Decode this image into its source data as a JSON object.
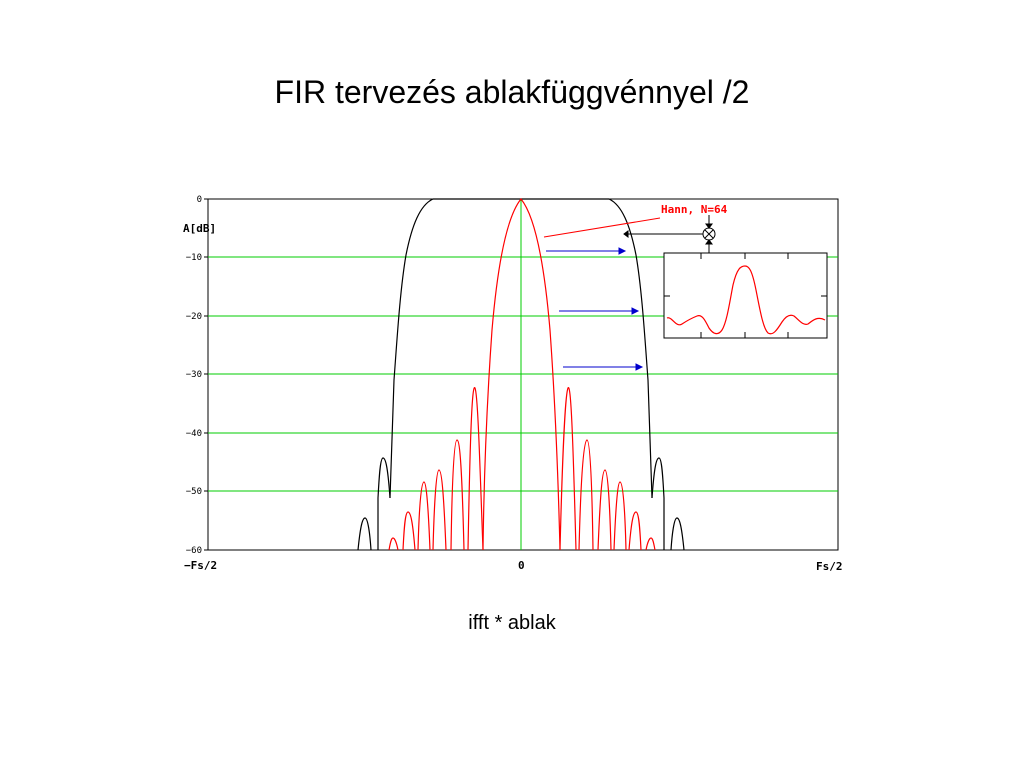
{
  "slide": {
    "title": "FIR tervezés ablakfüggvénnyel /2",
    "caption": "ifft * ablak"
  },
  "figure": {
    "y_axis_label": "A[dB]",
    "y_ticks": [
      "0",
      "−10",
      "−20",
      "−30",
      "−40",
      "−50",
      "−60"
    ],
    "x_ticks": [
      "−Fs/2",
      "0",
      "Fs/2"
    ],
    "annotation_label": "Hann, N=64",
    "colors": {
      "frame": "#000000",
      "gridlines": "#00cc00",
      "center_line": "#00cc00",
      "ideal_response": "#000000",
      "windowed_response": "#ff0000",
      "arrows": "#0000cc",
      "inset_curve": "#ff0000"
    },
    "icons": [
      "multiply-circle-icon"
    ]
  }
}
